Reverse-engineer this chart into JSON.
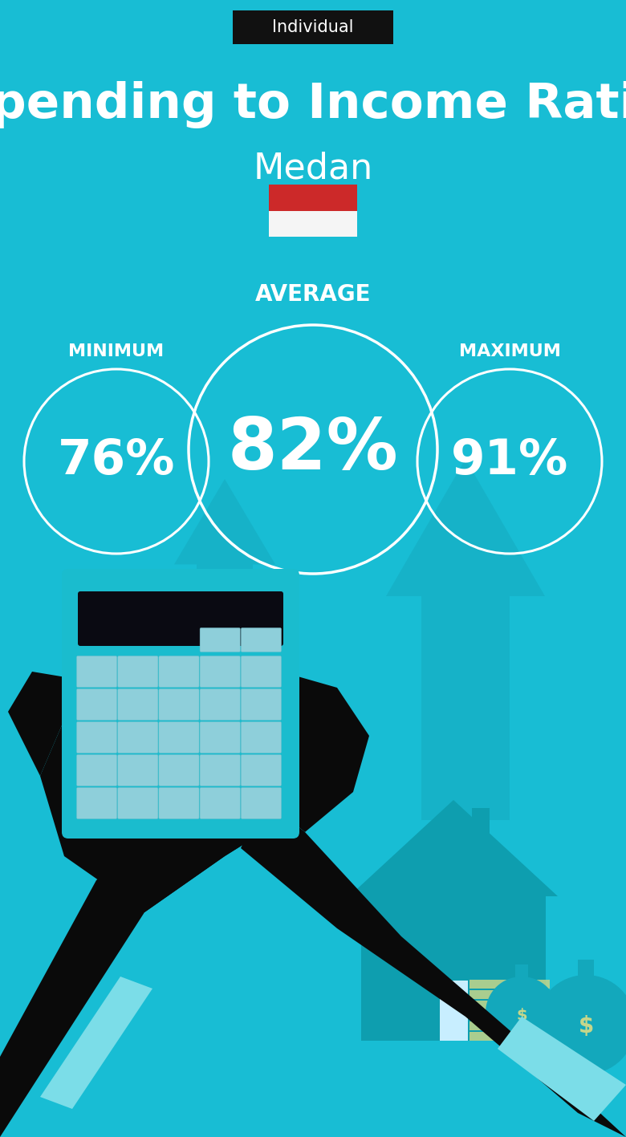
{
  "title": "Spending to Income Ratio",
  "subtitle": "Medan",
  "tag": "Individual",
  "bg_color": "#18BDD4",
  "tag_bg": "#111111",
  "tag_text_color": "#ffffff",
  "title_color": "#ffffff",
  "subtitle_color": "#ffffff",
  "circle_color": "#ffffff",
  "text_color": "#ffffff",
  "min_label": "MINIMUM",
  "avg_label": "AVERAGE",
  "max_label": "MAXIMUM",
  "min_value": "76%",
  "avg_value": "82%",
  "max_value": "91%",
  "flag_red": "#CC2929",
  "flag_white": "#f5f5f5",
  "arrow_color": "#15AABF",
  "house_color": "#0E9EAF",
  "hand_color": "#0a0a0a",
  "calc_body_color": "#1ABCCE",
  "calc_screen_color": "#0a0a12",
  "btn_color": "#8ECFDA",
  "cuff_color": "#7BDDE8",
  "bag_color": "#13A8BC",
  "money_color": "#C5D68A",
  "door_color": "#C8EEFF"
}
